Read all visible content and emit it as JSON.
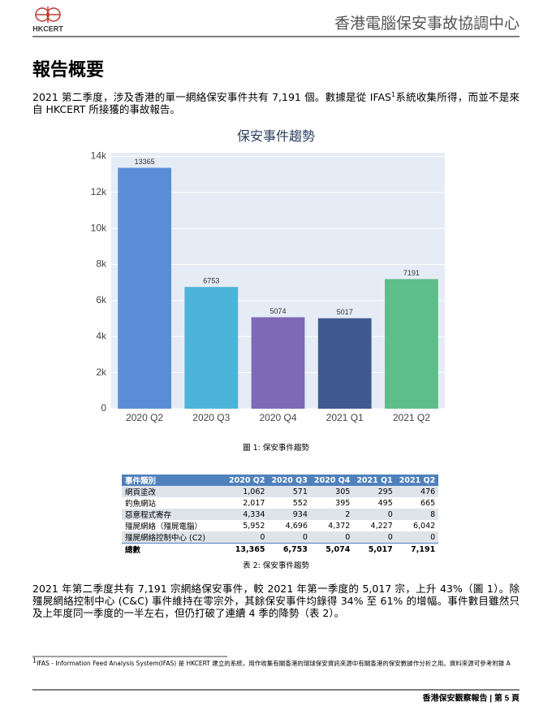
{
  "header": {
    "logo_text": "HKCERT",
    "title": "香港電腦保安事故協調中心"
  },
  "heading": "報告概要",
  "paragraph_1": {
    "text_before": "2021 第二季度，涉及香港的單一網絡保安事件共有 7,191 個。數據是從 IFAS",
    "footnote_ref": "1",
    "text_after": "系統收集所得，而並不是來自 HKCERT 所接獲的事故報告。"
  },
  "chart_data": {
    "type": "bar",
    "title": "保安事件趨勢",
    "categories": [
      "2020 Q2",
      "2020 Q3",
      "2020 Q4",
      "2021 Q1",
      "2021 Q2"
    ],
    "values": [
      13365,
      6753,
      5074,
      5017,
      7191
    ],
    "colors": [
      "#5b8dd6",
      "#4db3d9",
      "#7d69b5",
      "#3e5a8e",
      "#5ebd8a"
    ],
    "ylim": [
      0,
      14200
    ],
    "yticks": [
      0,
      {
        "value": 2000,
        "label": "2k"
      },
      {
        "value": 4000,
        "label": "4k"
      },
      {
        "value": 6000,
        "label": "6k"
      },
      {
        "value": 8000,
        "label": "8k"
      },
      {
        "value": 10000,
        "label": "10k"
      },
      {
        "value": 12000,
        "label": "12k"
      },
      {
        "value": 14000,
        "label": "14k"
      }
    ],
    "grid": true
  },
  "figure_caption": "圖 1: 保安事件趨勢",
  "table": {
    "header": [
      "事件類別",
      "2020 Q2",
      "2020 Q3",
      "2020 Q4",
      "2021 Q1",
      "2021 Q2"
    ],
    "rows": [
      [
        "網頁塗改",
        "1,062",
        "571",
        "305",
        "295",
        "476"
      ],
      [
        "釣魚網站",
        "2,017",
        "552",
        "395",
        "495",
        "665"
      ],
      [
        "惡意程式寄存",
        "4,334",
        "934",
        "2",
        "0",
        "8"
      ],
      [
        "殭屍網絡（殭屍電腦）",
        "5,952",
        "4,696",
        "4,372",
        "4,227",
        "6,042"
      ],
      [
        "殭屍網絡控制中心 (C2)",
        "0",
        "0",
        "0",
        "0",
        "0"
      ],
      [
        "總數",
        "13,365",
        "6,753",
        "5,074",
        "5,017",
        "7,191"
      ]
    ]
  },
  "table_caption": "表 2: 保安事件趨勢",
  "paragraph_2": "2021 年第二季度共有 7,191 宗網絡保安事件，較 2021 年第一季度的 5,017 宗，上升 43%（圖 1）。除殭屍網絡控制中心 (C&C) 事件維持在零宗外，其餘保安事件均錄得 34% 至 61% 的增幅。事件數目雖然只及上年度同一季度的一半左右，但仍打破了連續 4 季的降勢（表 2）。",
  "footnote": {
    "marker": "1",
    "text": "IFAS - Information Feed Analysis System(IFAS) 是 HKCERT 建立的系統，用作收集有關香港的環球保安資訊來源中有關香港的保安數據作分析之用。資料來源可參考附錄 A"
  },
  "footer": "香港保安觀察報告 | 第 5 頁"
}
